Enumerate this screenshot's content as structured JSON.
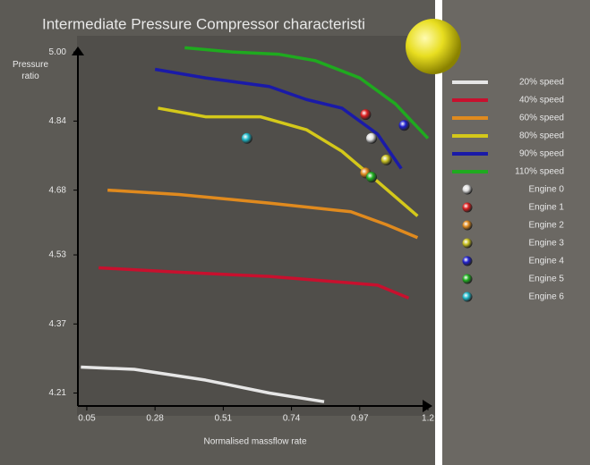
{
  "chart_data": {
    "type": "line",
    "title": "Intermediate Pressure Compressor characteristi",
    "xlabel": "Normalised massflow rate",
    "ylabel": "Pressure ratio",
    "xlim": [
      0.02,
      1.2
    ],
    "ylim": [
      4.18,
      5.02
    ],
    "xticks": [
      0.05,
      0.28,
      0.51,
      0.74,
      0.97,
      1.2
    ],
    "yticks": [
      4.21,
      4.37,
      4.53,
      4.68,
      4.84,
      {
        "value": 5,
        "label": "5.00"
      }
    ],
    "series": [
      {
        "name": "20% speed",
        "color": "#e6e6e6",
        "mode": "lines",
        "x": [
          0.03,
          0.21,
          0.45,
          0.665,
          0.85
        ],
        "values": [
          4.27,
          4.265,
          4.24,
          4.21,
          4.19
        ]
      },
      {
        "name": "40% speed",
        "color": "#c8102e",
        "mode": "lines",
        "x": [
          0.09,
          0.36,
          0.665,
          0.85,
          1.03,
          1.135
        ],
        "values": [
          4.5,
          4.49,
          4.48,
          4.47,
          4.46,
          4.43
        ]
      },
      {
        "name": "60% speed",
        "color": "#e08a1e",
        "mode": "lines",
        "x": [
          0.12,
          0.36,
          0.665,
          0.94,
          1.06,
          1.165
        ],
        "values": [
          4.68,
          4.67,
          4.65,
          4.63,
          4.6,
          4.57
        ]
      },
      {
        "name": "80% speed",
        "color": "#d4c81a",
        "mode": "lines",
        "x": [
          0.29,
          0.45,
          0.635,
          0.79,
          0.91,
          1.03,
          1.165
        ],
        "values": [
          4.87,
          4.85,
          4.85,
          4.82,
          4.77,
          4.7,
          4.62
        ]
      },
      {
        "name": "90% speed",
        "color": "#1a1aa8",
        "mode": "lines",
        "x": [
          0.28,
          0.45,
          0.665,
          0.79,
          0.91,
          1.03,
          1.11
        ],
        "values": [
          4.96,
          4.94,
          4.92,
          4.89,
          4.87,
          4.81,
          4.73
        ]
      },
      {
        "name": "110% speed",
        "color": "#1faa1f",
        "mode": "lines",
        "x": [
          0.38,
          0.54,
          0.695,
          0.82,
          0.97,
          1.09,
          1.2
        ],
        "values": [
          5.01,
          5.0,
          4.995,
          4.98,
          4.94,
          4.88,
          4.8
        ]
      },
      {
        "name": "Engine 0",
        "color": "#e0e0e0",
        "mode": "markers",
        "x": [
          1.01
        ],
        "values": [
          4.8
        ]
      },
      {
        "name": "Engine 1",
        "color": "#dd2020",
        "mode": "markers",
        "x": [
          0.99
        ],
        "values": [
          4.855
        ]
      },
      {
        "name": "Engine 2",
        "color": "#e08a1e",
        "mode": "markers",
        "x": [
          0.99
        ],
        "values": [
          4.72
        ]
      },
      {
        "name": "Engine 3",
        "color": "#c8c020",
        "mode": "markers",
        "x": [
          1.06
        ],
        "values": [
          4.75
        ]
      },
      {
        "name": "Engine 4",
        "color": "#2020cc",
        "mode": "markers",
        "x": [
          1.12
        ],
        "values": [
          4.83
        ]
      },
      {
        "name": "Engine 5",
        "color": "#20b020",
        "mode": "markers",
        "x": [
          1.01
        ],
        "values": [
          4.71
        ]
      },
      {
        "name": "Engine 6",
        "color": "#20b8c8",
        "mode": "markers",
        "x": [
          0.59
        ],
        "values": [
          4.8
        ]
      }
    ]
  }
}
